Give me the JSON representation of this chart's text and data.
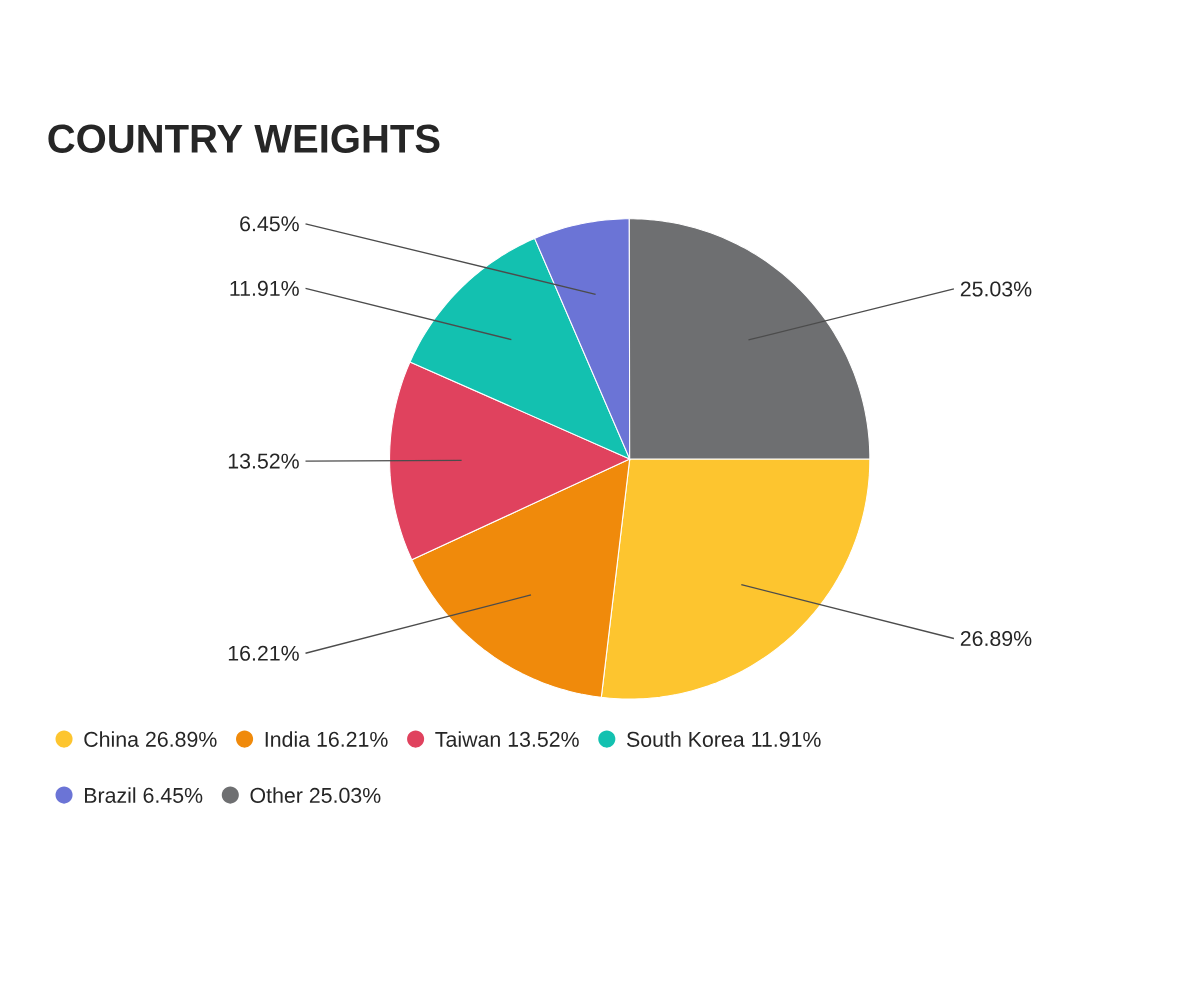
{
  "chart_data": {
    "type": "pie",
    "title": "COUNTRY WEIGHTS",
    "categories": [
      "China",
      "India",
      "Taiwan",
      "South Korea",
      "Brazil",
      "Other"
    ],
    "values": [
      26.89,
      16.21,
      13.52,
      11.91,
      6.45,
      25.03
    ],
    "colors": [
      "#fdc52f",
      "#f08a0b",
      "#e0425e",
      "#13c1b0",
      "#6b74d6",
      "#6e6f71"
    ],
    "value_labels": [
      "26.89%",
      "16.21%",
      "13.52%",
      "11.91%",
      "6.45%",
      "25.03%"
    ],
    "legend": "bottom"
  }
}
